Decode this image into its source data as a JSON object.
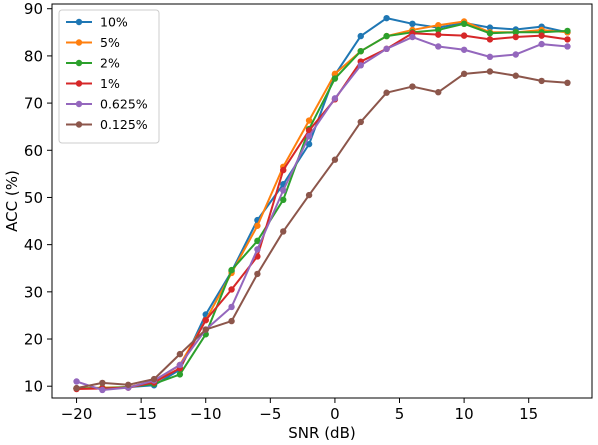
{
  "chart_data": {
    "type": "line",
    "title": "",
    "xlabel": "SNR (dB)",
    "ylabel": "ACC (%)",
    "xlim": [
      -21.9,
      19.9
    ],
    "ylim": [
      7.5,
      91
    ],
    "xticks": [
      -20,
      -15,
      -10,
      -5,
      0,
      5,
      10,
      15
    ],
    "xtick_labels": [
      "−20",
      "−15",
      "−10",
      "−5",
      "0",
      "5",
      "10",
      "15"
    ],
    "yticks": [
      10,
      20,
      30,
      40,
      50,
      60,
      70,
      80,
      90
    ],
    "ytick_labels": [
      "10",
      "20",
      "30",
      "40",
      "50",
      "60",
      "70",
      "80",
      "90"
    ],
    "grid": false,
    "legend": "top-left",
    "x": [
      -20,
      -18,
      -16,
      -14,
      -12,
      -10,
      -8,
      -6,
      -4,
      -2,
      0,
      2,
      4,
      6,
      8,
      10,
      12,
      14,
      16,
      18
    ],
    "series": [
      {
        "name": "10%",
        "color": "#1f77b4",
        "values": [
          9.5,
          9.5,
          9.8,
          10.2,
          13.5,
          25.2,
          34.3,
          45.2,
          52.8,
          61.3,
          76.0,
          84.2,
          88.0,
          86.8,
          86.0,
          87.0,
          86.0,
          85.6,
          86.2,
          85.0
        ]
      },
      {
        "name": "5%",
        "color": "#ff7f0e",
        "values": [
          9.5,
          9.7,
          9.8,
          11.0,
          14.5,
          24.0,
          34.0,
          44.0,
          56.5,
          66.3,
          76.2,
          81.0,
          84.2,
          85.5,
          86.5,
          87.3,
          85.0,
          85.0,
          85.5,
          85.0
        ]
      },
      {
        "name": "2%",
        "color": "#2ca02c",
        "values": [
          9.5,
          9.6,
          9.8,
          10.5,
          12.5,
          21.0,
          34.6,
          40.8,
          49.5,
          64.5,
          75.2,
          81.0,
          84.2,
          85.0,
          85.5,
          86.8,
          84.8,
          85.0,
          85.0,
          85.3
        ]
      },
      {
        "name": "1%",
        "color": "#d62728",
        "values": [
          9.4,
          9.5,
          9.7,
          10.8,
          13.8,
          24.0,
          30.5,
          37.5,
          55.8,
          64.2,
          70.8,
          78.8,
          81.5,
          84.8,
          84.5,
          84.3,
          83.5,
          84.0,
          84.3,
          83.5
        ]
      },
      {
        "name": "0.625%",
        "color": "#9467bd",
        "values": [
          11.0,
          9.2,
          9.7,
          11.2,
          14.5,
          22.0,
          26.8,
          39.0,
          51.5,
          63.0,
          71.0,
          78.0,
          81.5,
          84.0,
          82.0,
          81.3,
          79.8,
          80.3,
          82.5,
          82.0
        ]
      },
      {
        "name": "0.125%",
        "color": "#8c564b",
        "values": [
          9.6,
          10.7,
          10.3,
          11.5,
          16.8,
          22.0,
          23.8,
          33.8,
          42.8,
          50.5,
          58.0,
          66.0,
          72.2,
          73.5,
          72.3,
          76.2,
          76.7,
          75.8,
          74.7,
          74.3
        ]
      }
    ]
  }
}
